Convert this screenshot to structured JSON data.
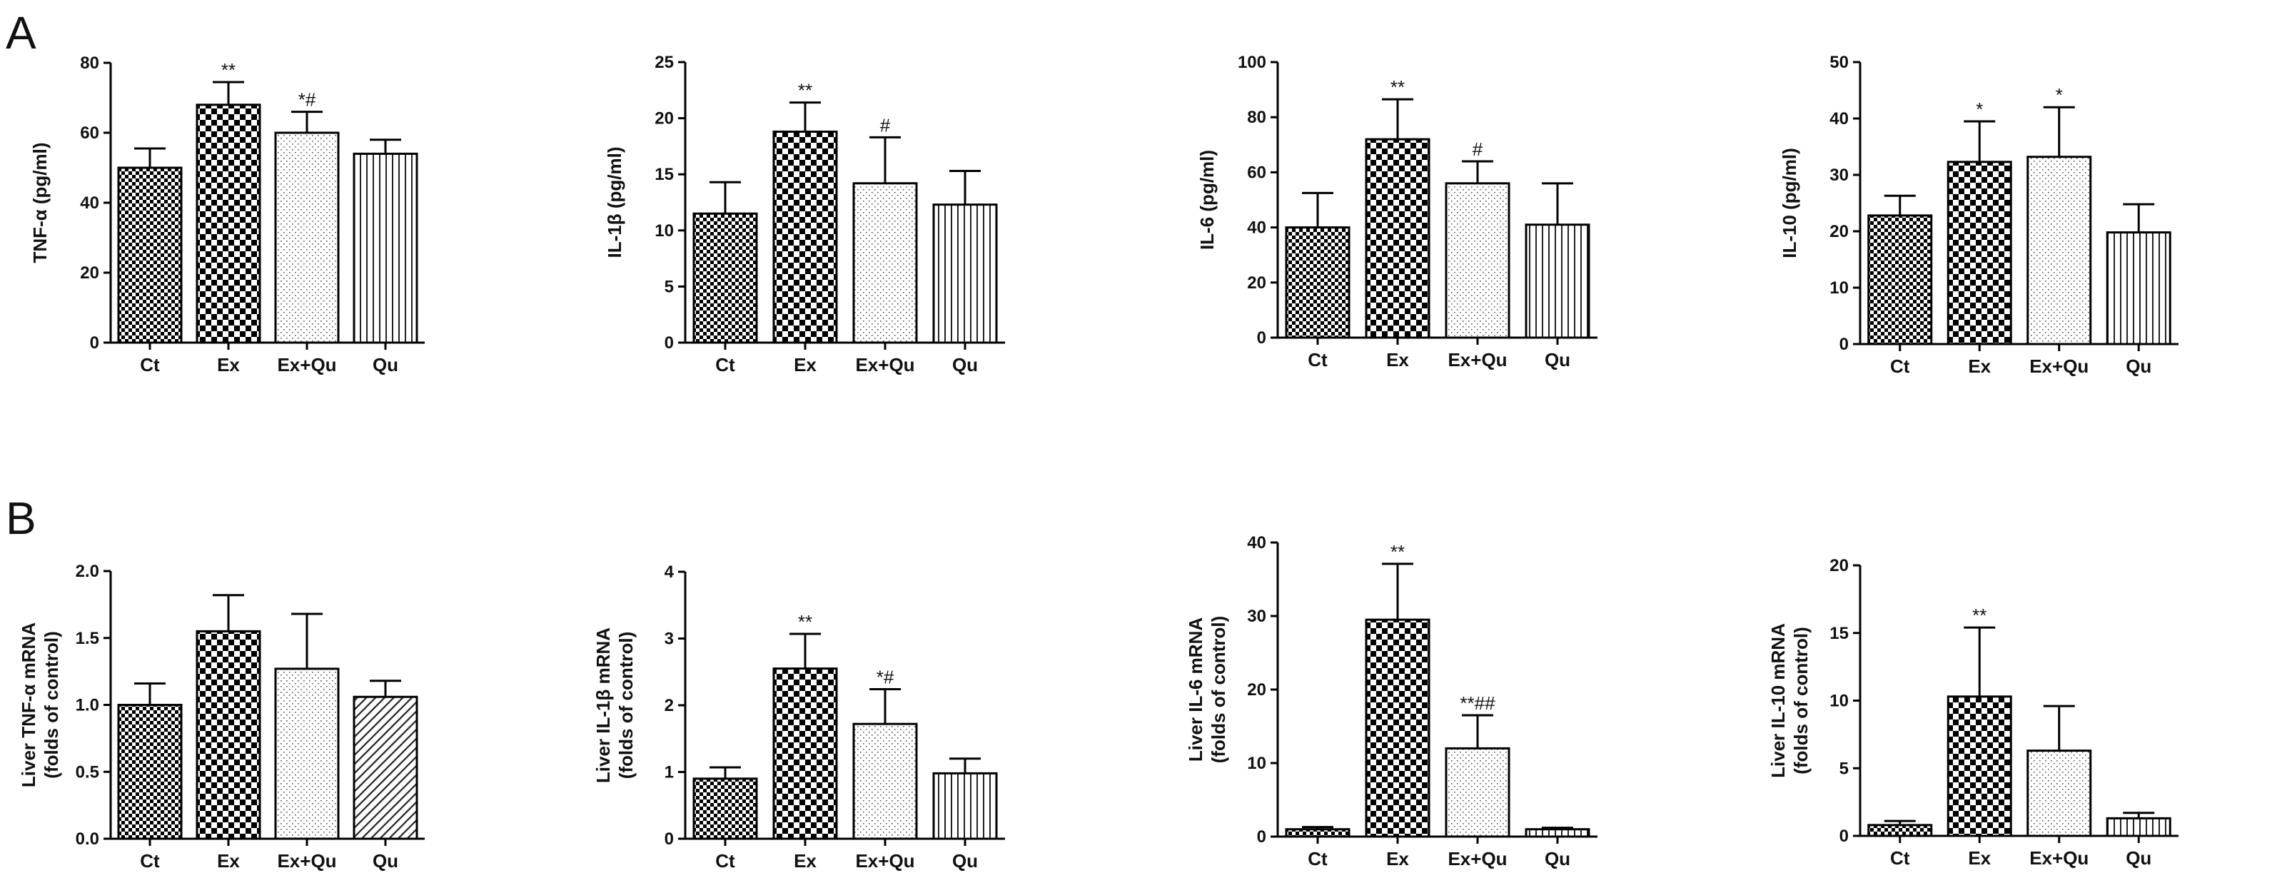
{
  "panels": [
    {
      "label": "A"
    },
    {
      "label": "B"
    }
  ],
  "chart_data": [
    {
      "type": "bar",
      "panel": "A",
      "ylabel": [
        "TNF-α  (pg/ml)"
      ],
      "categories": [
        "Ct",
        "Ex",
        "Ex+Qu",
        "Qu"
      ],
      "values": [
        50,
        68,
        60,
        54
      ],
      "errors": [
        5.5,
        6.5,
        6,
        4
      ],
      "annotations": [
        "",
        "**",
        "*#",
        ""
      ],
      "ylim": [
        0,
        80
      ],
      "yticks": [
        0,
        20,
        40,
        60,
        80
      ],
      "patterns": [
        "check-small",
        "check-large",
        "dots",
        "vlines"
      ]
    },
    {
      "type": "bar",
      "panel": "A",
      "ylabel": [
        "IL-1β  (pg/ml)"
      ],
      "categories": [
        "Ct",
        "Ex",
        "Ex+Qu",
        "Qu"
      ],
      "values": [
        11.5,
        18.8,
        14.2,
        12.3
      ],
      "errors": [
        2.8,
        2.6,
        4.1,
        3.0
      ],
      "annotations": [
        "",
        "**",
        "#",
        ""
      ],
      "ylim": [
        0,
        25
      ],
      "yticks": [
        0,
        5,
        10,
        15,
        20,
        25
      ],
      "patterns": [
        "check-small",
        "check-large",
        "dots",
        "vlines"
      ]
    },
    {
      "type": "bar",
      "panel": "A",
      "ylabel": [
        "IL-6  (pg/ml)"
      ],
      "categories": [
        "Ct",
        "Ex",
        "Ex+Qu",
        "Qu"
      ],
      "values": [
        40,
        72,
        56,
        41
      ],
      "errors": [
        12.5,
        14.5,
        8,
        15
      ],
      "annotations": [
        "",
        "**",
        "#",
        ""
      ],
      "ylim": [
        0,
        100
      ],
      "yticks": [
        0,
        20,
        40,
        60,
        80,
        100
      ],
      "patterns": [
        "check-small",
        "check-large",
        "dots",
        "vlines"
      ]
    },
    {
      "type": "bar",
      "panel": "A",
      "ylabel": [
        "IL-10  (pg/ml)"
      ],
      "categories": [
        "Ct",
        "Ex",
        "Ex+Qu",
        "Qu"
      ],
      "values": [
        22.8,
        32.3,
        33.2,
        19.8
      ],
      "errors": [
        3.5,
        7.2,
        8.8,
        5
      ],
      "annotations": [
        "",
        "*",
        "*",
        ""
      ],
      "ylim": [
        0,
        50
      ],
      "yticks": [
        0,
        10,
        20,
        30,
        40,
        50
      ],
      "patterns": [
        "check-small",
        "check-large",
        "dots",
        "vlines"
      ]
    },
    {
      "type": "bar",
      "panel": "B",
      "ylabel": [
        "Liver TNF-α  mRNA",
        "(folds of control)"
      ],
      "categories": [
        "Ct",
        "Ex",
        "Ex+Qu",
        "Qu"
      ],
      "values": [
        1.0,
        1.55,
        1.27,
        1.06
      ],
      "errors": [
        0.16,
        0.27,
        0.41,
        0.12
      ],
      "annotations": [
        "",
        "",
        "",
        ""
      ],
      "ylim": [
        0,
        2.0
      ],
      "yticks": [
        "0.0",
        "0.5",
        "1.0",
        "1.5",
        "2.0"
      ],
      "patterns": [
        "check-small",
        "check-large",
        "dots",
        "diag"
      ]
    },
    {
      "type": "bar",
      "panel": "B",
      "ylabel": [
        "Liver IL-1β  mRNA",
        "(folds of control)"
      ],
      "categories": [
        "Ct",
        "Ex",
        "Ex+Qu",
        "Qu"
      ],
      "values": [
        0.9,
        2.55,
        1.72,
        0.98
      ],
      "errors": [
        0.17,
        0.52,
        0.52,
        0.22
      ],
      "annotations": [
        "",
        "**",
        "*#",
        ""
      ],
      "ylim": [
        0,
        4
      ],
      "yticks": [
        0,
        1,
        2,
        3,
        4
      ],
      "patterns": [
        "check-small",
        "check-large",
        "dots",
        "vlines"
      ]
    },
    {
      "type": "bar",
      "panel": "B",
      "ylabel": [
        "Liver IL-6 mRNA",
        "(folds of control)"
      ],
      "categories": [
        "Ct",
        "Ex",
        "Ex+Qu",
        "Qu"
      ],
      "values": [
        1.0,
        29.5,
        12.0,
        1.0
      ],
      "errors": [
        0.3,
        7.6,
        4.5,
        0.2
      ],
      "annotations": [
        "",
        "**",
        "**##",
        ""
      ],
      "ylim": [
        0,
        40
      ],
      "yticks": [
        0,
        10,
        20,
        30,
        40
      ],
      "patterns": [
        "check-small",
        "check-large",
        "dots",
        "vlines"
      ]
    },
    {
      "type": "bar",
      "panel": "B",
      "ylabel": [
        "Liver IL-10 mRNA",
        "(folds of control)"
      ],
      "categories": [
        "Ct",
        "Ex",
        "Ex+Qu",
        "Qu"
      ],
      "values": [
        0.8,
        10.3,
        6.3,
        1.3
      ],
      "errors": [
        0.3,
        5.1,
        3.3,
        0.4
      ],
      "annotations": [
        "",
        "**",
        "",
        ""
      ],
      "ylim": [
        0,
        20
      ],
      "yticks": [
        0,
        5,
        10,
        15,
        20
      ],
      "patterns": [
        "check-small",
        "check-large",
        "dots",
        "vlines"
      ]
    }
  ]
}
